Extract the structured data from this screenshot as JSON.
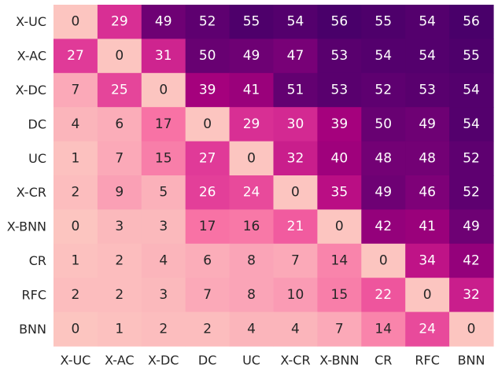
{
  "chart_data": {
    "type": "heatmap",
    "title": "",
    "xlabel": "",
    "ylabel": "",
    "rows": [
      "X-UC",
      "X-AC",
      "X-DC",
      "DC",
      "UC",
      "X-CR",
      "X-BNN",
      "CR",
      "RFC",
      "BNN"
    ],
    "columns": [
      "X-UC",
      "X-AC",
      "X-DC",
      "DC",
      "UC",
      "X-CR",
      "X-BNN",
      "CR",
      "RFC",
      "BNN"
    ],
    "values": [
      [
        0,
        29,
        49,
        52,
        55,
        54,
        56,
        55,
        54,
        56
      ],
      [
        27,
        0,
        31,
        50,
        49,
        47,
        53,
        54,
        54,
        55
      ],
      [
        7,
        25,
        0,
        39,
        41,
        51,
        53,
        52,
        53,
        54
      ],
      [
        4,
        6,
        17,
        0,
        29,
        30,
        39,
        50,
        49,
        54
      ],
      [
        1,
        7,
        15,
        27,
        0,
        32,
        40,
        48,
        48,
        52
      ],
      [
        2,
        9,
        5,
        26,
        24,
        0,
        35,
        49,
        46,
        52
      ],
      [
        0,
        3,
        3,
        17,
        16,
        21,
        0,
        42,
        41,
        49
      ],
      [
        1,
        2,
        4,
        6,
        8,
        7,
        14,
        0,
        34,
        42
      ],
      [
        2,
        2,
        3,
        7,
        8,
        10,
        15,
        22,
        0,
        32
      ],
      [
        0,
        1,
        2,
        2,
        4,
        4,
        7,
        14,
        24,
        0
      ]
    ],
    "value_range": [
      0,
      56
    ],
    "colormap": [
      "#fcc5c0",
      "#fa9fb5",
      "#f768a1",
      "#dd3497",
      "#ae017e",
      "#7a0177",
      "#49006a"
    ],
    "grid": false,
    "legend": "none"
  }
}
